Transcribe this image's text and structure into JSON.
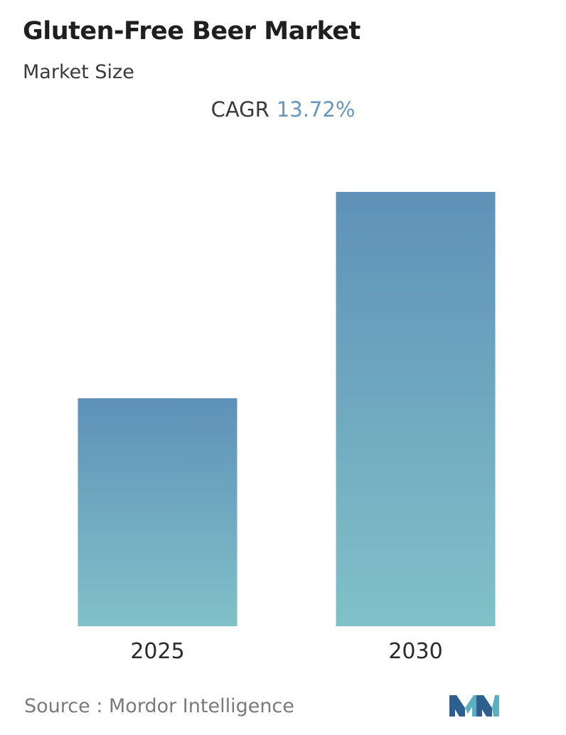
{
  "chart_data": {
    "type": "bar",
    "title": "Gluten-Free Beer Market",
    "subtitle": "Market Size",
    "annotations": {
      "cagr_label": "CAGR",
      "cagr_value": "13.72%"
    },
    "categories": [
      "2025",
      "2030"
    ],
    "values": [
      52.5,
      100
    ],
    "xlabel": "",
    "ylabel": "",
    "ylim": [
      0,
      100
    ],
    "grid": false,
    "legend": "none",
    "colors": {
      "bar_top": "#5f91b8",
      "bar_bottom": "#80c1c8",
      "cagr_value": "#6797bd"
    }
  },
  "source": {
    "label": "Source :",
    "name": "Mordor Intelligence"
  },
  "logo": {
    "icon": "mordor-intelligence-logo-icon",
    "colors": [
      "#2f5f8f",
      "#5aaec0"
    ]
  }
}
